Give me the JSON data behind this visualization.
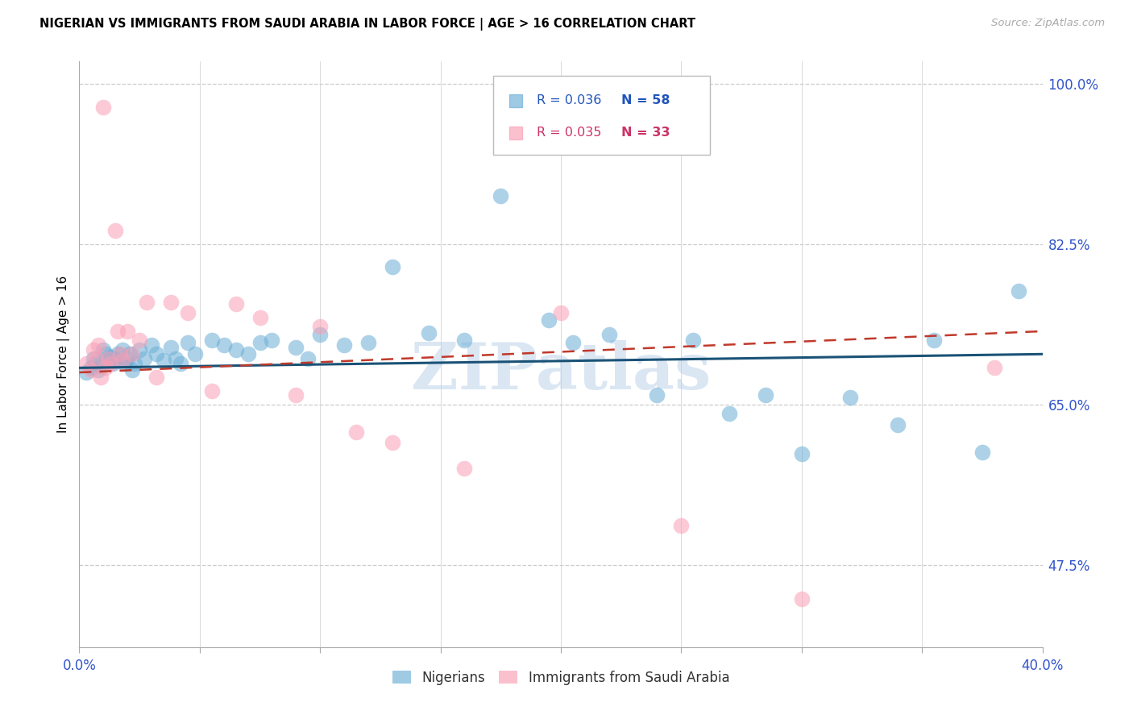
{
  "title": "NIGERIAN VS IMMIGRANTS FROM SAUDI ARABIA IN LABOR FORCE | AGE > 16 CORRELATION CHART",
  "source": "Source: ZipAtlas.com",
  "ylabel": "In Labor Force | Age > 16",
  "watermark": "ZIPatlas",
  "xlim": [
    0.0,
    0.4
  ],
  "ylim": [
    0.385,
    1.025
  ],
  "xtick_positions": [
    0.0,
    0.05,
    0.1,
    0.15,
    0.2,
    0.25,
    0.3,
    0.35,
    0.4
  ],
  "xticklabels": [
    "0.0%",
    "",
    "",
    "",
    "",
    "",
    "",
    "",
    "40.0%"
  ],
  "yticks_right": [
    1.0,
    0.825,
    0.65,
    0.475
  ],
  "ytick_labels_right": [
    "100.0%",
    "82.5%",
    "65.0%",
    "47.5%"
  ],
  "grid_color": "#cccccc",
  "blue_color": "#6baed6",
  "pink_color": "#fa9fb5",
  "blue_line_color": "#1a5276",
  "pink_line_color": "#c0392b",
  "blue_scatter_x": [
    0.003,
    0.005,
    0.006,
    0.007,
    0.008,
    0.009,
    0.01,
    0.011,
    0.012,
    0.013,
    0.014,
    0.015,
    0.016,
    0.017,
    0.018,
    0.019,
    0.02,
    0.021,
    0.022,
    0.023,
    0.025,
    0.027,
    0.03,
    0.032,
    0.035,
    0.038,
    0.04,
    0.042,
    0.045,
    0.048,
    0.055,
    0.06,
    0.065,
    0.07,
    0.075,
    0.08,
    0.09,
    0.095,
    0.1,
    0.11,
    0.12,
    0.13,
    0.145,
    0.16,
    0.175,
    0.195,
    0.205,
    0.22,
    0.24,
    0.255,
    0.27,
    0.285,
    0.3,
    0.32,
    0.34,
    0.355,
    0.375,
    0.39
  ],
  "blue_scatter_y": [
    0.685,
    0.69,
    0.7,
    0.695,
    0.688,
    0.692,
    0.71,
    0.705,
    0.698,
    0.702,
    0.695,
    0.7,
    0.705,
    0.698,
    0.71,
    0.695,
    0.7,
    0.705,
    0.688,
    0.695,
    0.71,
    0.7,
    0.715,
    0.705,
    0.698,
    0.712,
    0.7,
    0.695,
    0.718,
    0.705,
    0.72,
    0.715,
    0.71,
    0.705,
    0.718,
    0.72,
    0.712,
    0.7,
    0.726,
    0.715,
    0.718,
    0.8,
    0.728,
    0.72,
    0.878,
    0.742,
    0.718,
    0.726,
    0.66,
    0.72,
    0.64,
    0.66,
    0.596,
    0.658,
    0.628,
    0.72,
    0.598,
    0.774
  ],
  "pink_scatter_x": [
    0.003,
    0.005,
    0.006,
    0.007,
    0.008,
    0.009,
    0.01,
    0.011,
    0.012,
    0.013,
    0.015,
    0.016,
    0.017,
    0.018,
    0.02,
    0.022,
    0.025,
    0.028,
    0.032,
    0.038,
    0.045,
    0.055,
    0.065,
    0.075,
    0.09,
    0.1,
    0.115,
    0.13,
    0.16,
    0.2,
    0.25,
    0.3,
    0.38
  ],
  "pink_scatter_y": [
    0.695,
    0.688,
    0.71,
    0.7,
    0.715,
    0.68,
    0.975,
    0.69,
    0.7,
    0.695,
    0.84,
    0.73,
    0.705,
    0.698,
    0.73,
    0.705,
    0.72,
    0.762,
    0.68,
    0.762,
    0.75,
    0.665,
    0.76,
    0.745,
    0.66,
    0.735,
    0.62,
    0.608,
    0.58,
    0.75,
    0.518,
    0.438,
    0.69
  ],
  "blue_trend_x": [
    0.0,
    0.4
  ],
  "blue_trend_y": [
    0.69,
    0.705
  ],
  "pink_trend_x": [
    0.0,
    0.4
  ],
  "pink_trend_y": [
    0.685,
    0.73
  ]
}
